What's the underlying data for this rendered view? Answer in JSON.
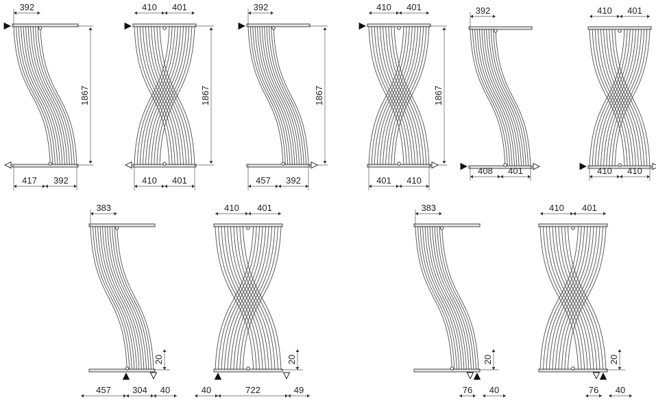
{
  "diagrams": [
    {
      "name": "radiator-1",
      "twisted": false,
      "top": [
        "392"
      ],
      "bottom": [
        "417",
        "392"
      ],
      "height": "1867",
      "flow": {
        "in": "top-left",
        "out": "bottom-left"
      }
    },
    {
      "name": "radiator-2",
      "twisted": true,
      "top": [
        "410",
        "401"
      ],
      "bottom": [
        "410",
        "401"
      ],
      "height": "1867",
      "flow": {
        "in": "top-left",
        "out": "bottom-left"
      }
    },
    {
      "name": "radiator-3",
      "twisted": false,
      "top": [
        "392"
      ],
      "bottom": [
        "457",
        "392"
      ],
      "height": "1867",
      "flow": {
        "in": "top-left",
        "out": "bottom-right"
      }
    },
    {
      "name": "radiator-4",
      "twisted": true,
      "top": [
        "410",
        "401"
      ],
      "bottom": [
        "401",
        "410"
      ],
      "height": "1867",
      "flow": {
        "in": "top-left",
        "out": "bottom-right"
      }
    },
    {
      "name": "radiator-5",
      "twisted": false,
      "top": [
        "392"
      ],
      "bottom": [
        "408",
        "401"
      ],
      "height": "",
      "flow": {
        "in": "bottom-left",
        "out": "bottom-right"
      }
    },
    {
      "name": "radiator-6",
      "twisted": true,
      "top": [
        "410",
        "401"
      ],
      "bottom": [
        "410",
        "410"
      ],
      "height": "",
      "flow": {
        "in": "bottom-left",
        "out": "bottom-right"
      }
    },
    {
      "name": "radiator-7",
      "twisted": false,
      "top": [
        "383"
      ],
      "bottom": [
        "457",
        "304",
        "40"
      ],
      "side": "20",
      "height": "",
      "flow": {
        "in": "bottom-center",
        "out": "bottom-right"
      }
    },
    {
      "name": "radiator-8",
      "twisted": true,
      "top": [
        "410",
        "401"
      ],
      "bottom": [
        "40",
        "722",
        "49"
      ],
      "side": "20",
      "height": "",
      "flow": {
        "in": "bottom-left",
        "out": "bottom-right"
      }
    },
    {
      "name": "radiator-9",
      "twisted": false,
      "top": [
        "383"
      ],
      "bottom": [
        "76",
        "40"
      ],
      "side": "20",
      "height": "",
      "flow": {
        "in": "bottom-right-pair",
        "out": "bottom-right-pair"
      }
    },
    {
      "name": "radiator-10",
      "twisted": true,
      "top": [
        "410",
        "401"
      ],
      "bottom": [
        "76",
        "40"
      ],
      "side": "20",
      "height": "",
      "flow": {
        "in": "bottom-right-pair",
        "out": "bottom-right-pair"
      }
    }
  ],
  "colors": {
    "line": "#4a4a4a",
    "text": "#222222",
    "marker": "#111111"
  }
}
